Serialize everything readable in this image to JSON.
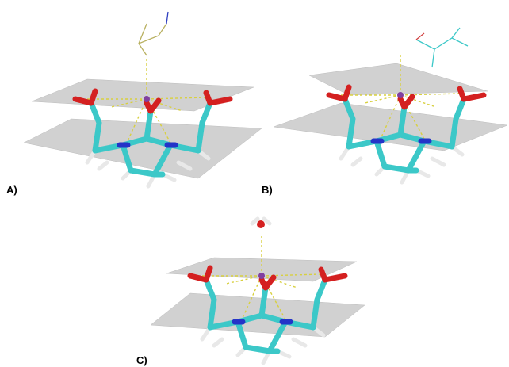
{
  "panels": [
    {
      "label": "A)"
    },
    {
      "label": "B)"
    },
    {
      "label": "C)"
    }
  ]
}
